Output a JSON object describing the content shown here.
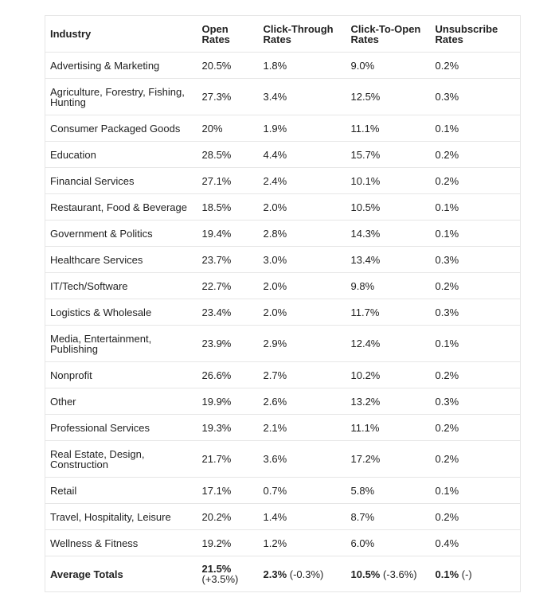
{
  "table": {
    "header": [
      "Industry",
      "Open Rates",
      "Click-Through Rates",
      "Click-To-Open Rates",
      "Unsubscribe Rates"
    ],
    "rows": [
      [
        "Advertising & Marketing",
        "20.5%",
        "1.8%",
        "9.0%",
        "0.2%"
      ],
      [
        "Agriculture, Forestry, Fishing, Hunting",
        "27.3%",
        "3.4%",
        "12.5%",
        "0.3%"
      ],
      [
        "Consumer Packaged Goods",
        "20%",
        "1.9%",
        "11.1%",
        "0.1%"
      ],
      [
        "Education",
        "28.5%",
        "4.4%",
        "15.7%",
        "0.2%"
      ],
      [
        "Financial Services",
        "27.1%",
        "2.4%",
        "10.1%",
        "0.2%"
      ],
      [
        "Restaurant, Food & Beverage",
        "18.5%",
        "2.0%",
        "10.5%",
        "0.1%"
      ],
      [
        "Government & Politics",
        "19.4%",
        "2.8%",
        "14.3%",
        "0.1%"
      ],
      [
        "Healthcare Services",
        "23.7%",
        "3.0%",
        "13.4%",
        "0.3%"
      ],
      [
        "IT/Tech/Software",
        "22.7%",
        "2.0%",
        "9.8%",
        "0.2%"
      ],
      [
        "Logistics & Wholesale",
        "23.4%",
        "2.0%",
        "11.7%",
        "0.3%"
      ],
      [
        "Media, Entertainment, Publishing",
        "23.9%",
        "2.9%",
        "12.4%",
        "0.1%"
      ],
      [
        "Nonprofit",
        "26.6%",
        "2.7%",
        "10.2%",
        "0.2%"
      ],
      [
        "Other",
        "19.9%",
        "2.6%",
        "13.2%",
        "0.3%"
      ],
      [
        "Professional Services",
        "19.3%",
        "2.1%",
        "11.1%",
        "0.2%"
      ],
      [
        "Real Estate, Design, Construction",
        "21.7%",
        "3.6%",
        "17.2%",
        "0.2%"
      ],
      [
        "Retail",
        "17.1%",
        "0.7%",
        "5.8%",
        "0.1%"
      ],
      [
        "Travel, Hospitality, Leisure",
        "20.2%",
        "1.4%",
        "8.7%",
        "0.2%"
      ],
      [
        "Wellness & Fitness",
        "19.2%",
        "1.2%",
        "6.0%",
        "0.4%"
      ]
    ],
    "totals": {
      "label": "Average Totals",
      "cells": [
        {
          "value": "21.5%",
          "change": "(+3.5%)"
        },
        {
          "value": "2.3%",
          "change": "(-0.3%)"
        },
        {
          "value": "10.5%",
          "change": "(-3.6%)"
        },
        {
          "value": "0.1%",
          "change": "(-)"
        }
      ]
    }
  }
}
